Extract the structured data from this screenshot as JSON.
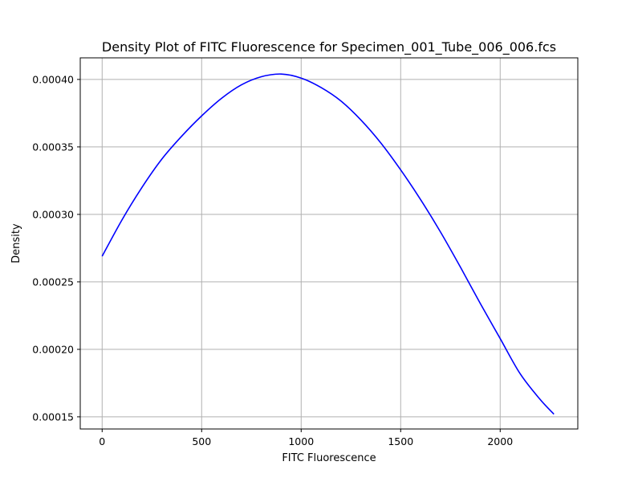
{
  "chart_data": {
    "type": "line",
    "title": "Density Plot of FITC Fluorescence for Specimen_001_Tube_006_006.fcs",
    "xlabel": "FITC Fluorescence",
    "ylabel": "Density",
    "xlim": [
      -110,
      2390
    ],
    "ylim": [
      0.000141,
      0.000416
    ],
    "xticks": [
      0,
      500,
      1000,
      1500,
      2000
    ],
    "xtick_labels": [
      "0",
      "500",
      "1000",
      "1500",
      "2000"
    ],
    "yticks": [
      0.00015,
      0.0002,
      0.00025,
      0.0003,
      0.00035,
      0.0004
    ],
    "ytick_labels": [
      "0.00015",
      "0.00020",
      "0.00025",
      "0.00030",
      "0.00035",
      "0.00040"
    ],
    "grid": true,
    "series": [
      {
        "color": "#0000ff",
        "x": [
          0,
          100,
          200,
          300,
          400,
          500,
          600,
          700,
          800,
          900,
          1000,
          1100,
          1200,
          1300,
          1400,
          1500,
          1600,
          1700,
          1800,
          1900,
          2000,
          2100,
          2200,
          2270
        ],
        "y": [
          0.000269,
          0.000296,
          0.00032,
          0.000341,
          0.000358,
          0.000373,
          0.000386,
          0.000396,
          0.000402,
          0.000404,
          0.000401,
          0.000394,
          0.000384,
          0.00037,
          0.000353,
          0.000333,
          0.000311,
          0.000287,
          0.000261,
          0.000234,
          0.000208,
          0.000182,
          0.000163,
          0.000152
        ]
      }
    ]
  }
}
